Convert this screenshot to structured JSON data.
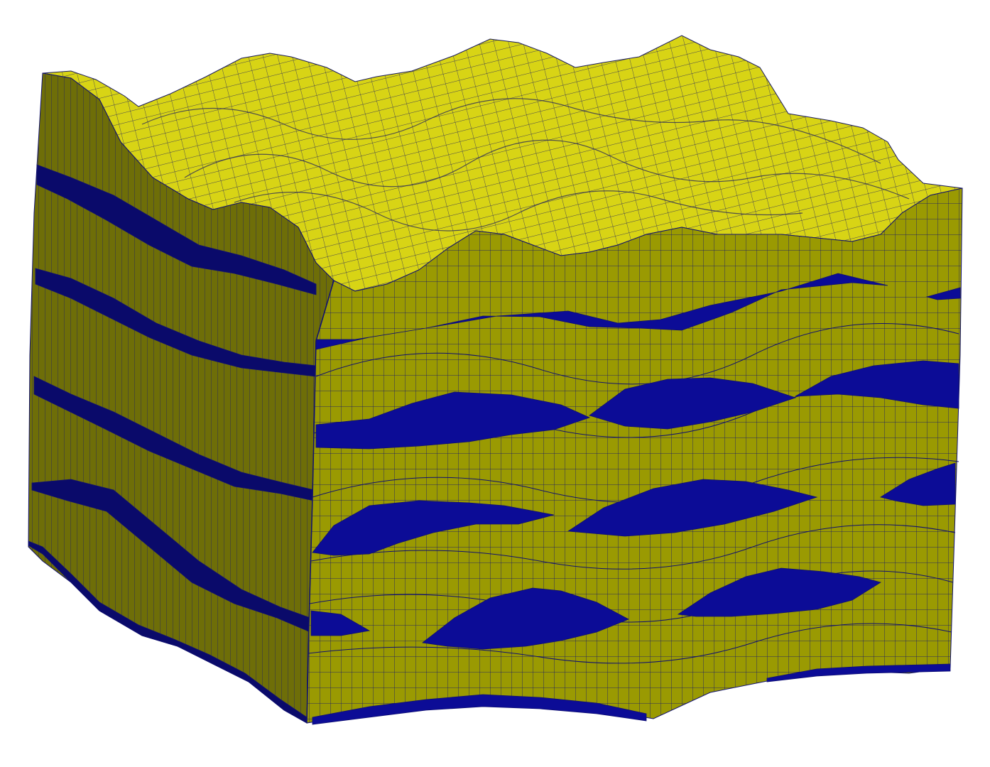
{
  "scene": {
    "type": "3d-geological-block-mesh",
    "background": "#ffffff",
    "colors": {
      "top_surface": "#d8d415",
      "front_face": "#9a9a02",
      "side_face": "#6e6e08",
      "lens_front": "#0c0c96",
      "lens_side": "#0a0a6a",
      "mesh_lines": "#101070"
    }
  }
}
